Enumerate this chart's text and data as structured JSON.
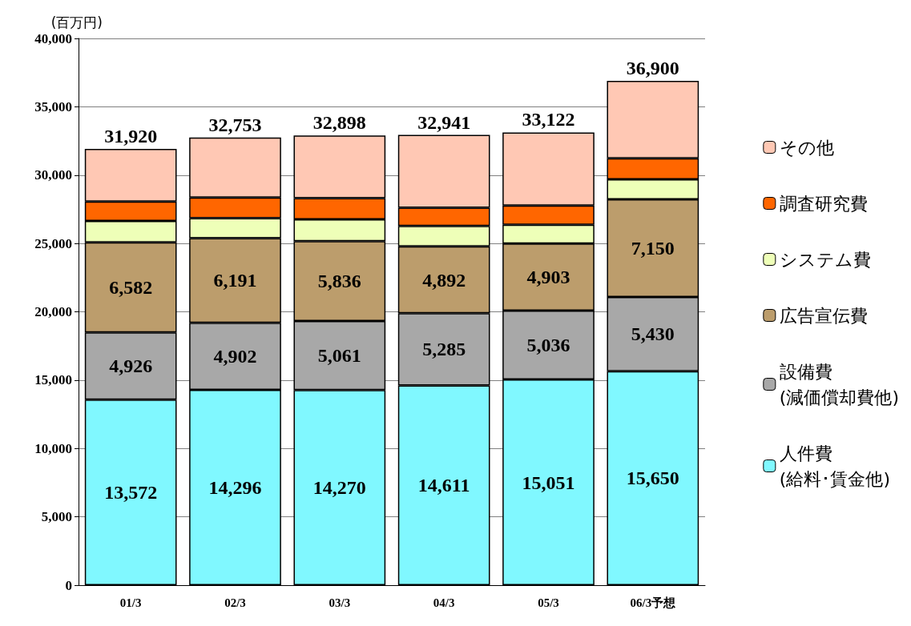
{
  "chart_data": {
    "type": "bar",
    "stacked": true,
    "ylabel": "(百万円)",
    "categories": [
      "01/3",
      "02/3",
      "03/3",
      "04/3",
      "05/3",
      "06/3予想"
    ],
    "series": [
      {
        "name": "人件費\n(給料･賃金他)",
        "color": "#80f8ff",
        "values": [
          13572,
          14296,
          14270,
          14611,
          15051,
          15650
        ],
        "value_labels": [
          "13,572",
          "14,296",
          "14,270",
          "14,611",
          "15,051",
          "15,650"
        ]
      },
      {
        "name": "設備費\n(減価償却費他)",
        "color": "#a8a8a8",
        "values": [
          4926,
          4902,
          5061,
          5285,
          5036,
          5430
        ],
        "value_labels": [
          "4,926",
          "4,902",
          "5,061",
          "5,285",
          "5,036",
          "5,430"
        ]
      },
      {
        "name": "広告宣伝費",
        "color": "#bc9d6c",
        "values": [
          6582,
          6191,
          5836,
          4892,
          4903,
          7150
        ],
        "value_labels": [
          "6,582",
          "6,191",
          "5,836",
          "4,892",
          "4,903",
          "7,150"
        ]
      },
      {
        "name": "システム費",
        "color": "#eeffb8",
        "values": [
          1570,
          1470,
          1600,
          1490,
          1380,
          1460
        ]
      },
      {
        "name": "調査研究費",
        "color": "#ff6600",
        "values": [
          1420,
          1500,
          1550,
          1340,
          1410,
          1540
        ]
      },
      {
        "name": "その他",
        "color": "#ffc8b4",
        "values": [
          3850,
          4394,
          4581,
          5323,
          5342,
          5670
        ]
      }
    ],
    "totals": [
      "31,920",
      "32,753",
      "32,898",
      "32,941",
      "33,122",
      "36,900"
    ],
    "ylim": [
      0,
      40000
    ],
    "yticks": [
      0,
      {
        "value": 5000,
        "label": "5,000"
      },
      {
        "value": 10000,
        "label": "10,000"
      },
      {
        "value": 15000,
        "label": "15,000"
      },
      {
        "value": 20000,
        "label": "20,000"
      },
      {
        "value": 25000,
        "label": "25,000"
      },
      {
        "value": 30000,
        "label": "30,000"
      },
      {
        "value": 35000,
        "label": "35,000"
      },
      {
        "value": 40000,
        "label": "40,000"
      }
    ],
    "grid": "y",
    "legend": "right"
  }
}
